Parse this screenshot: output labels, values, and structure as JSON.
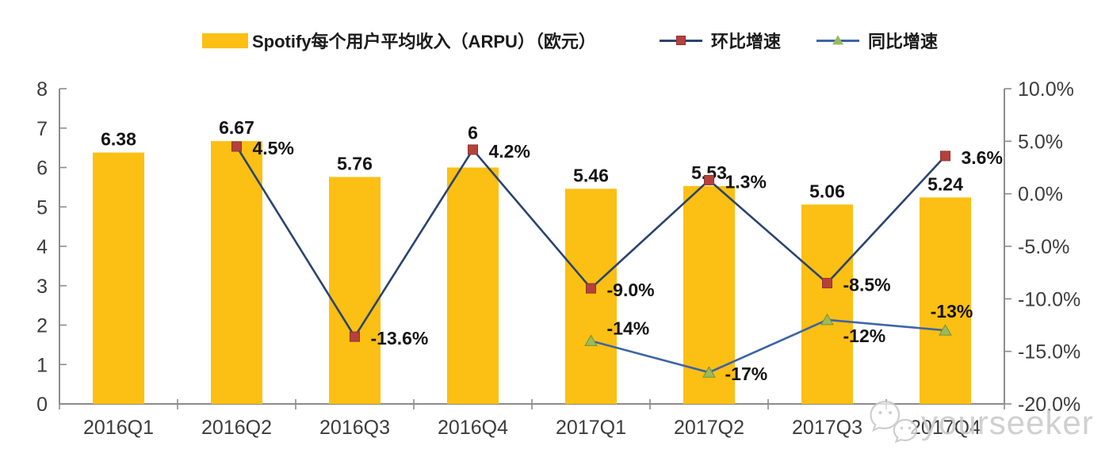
{
  "colors": {
    "bar": "#FCBF13",
    "qoq_line": "#2A4470",
    "qoq_marker": "#B5413D",
    "qoq_marker_edge": "#8E3330",
    "yoy_line": "#3C64A8",
    "yoy_marker": "#9CBA5B",
    "yoy_marker_edge": "#71923C",
    "axis": "#8C8C8C",
    "tick_text": "#3C3C3C",
    "data_label": "#141414",
    "watermark": "#cbcbcb"
  },
  "watermark": {
    "text": "yourseeker",
    "icon": "wechat-icon"
  },
  "chart_data": {
    "type": "bar+line",
    "title": "Spotify每个用户平均收入（ARPU）（欧元）",
    "grid": false,
    "legend_position": "top",
    "categories": [
      "2016Q1",
      "2016Q2",
      "2016Q3",
      "2016Q4",
      "2017Q1",
      "2017Q2",
      "2017Q3",
      "2017Q4"
    ],
    "bar_series": {
      "name": "Spotify每个用户平均收入（ARPU）（欧元）",
      "axis": "left",
      "values": [
        6.38,
        6.67,
        5.76,
        6,
        5.46,
        5.53,
        5.06,
        5.24
      ],
      "labels": [
        "6.38",
        "6.67",
        "5.76",
        "6",
        "5.46",
        "5.53",
        "5.06",
        "5.24"
      ],
      "label_dy": [
        0,
        0,
        0,
        -27,
        0,
        0,
        0,
        0
      ]
    },
    "line_series": [
      {
        "name": "环比增速",
        "axis": "right",
        "marker": "square",
        "points": [
          {
            "category": "2016Q2",
            "value": 4.5,
            "label": "4.5%",
            "label_pos": "right"
          },
          {
            "category": "2016Q3",
            "value": -13.6,
            "label": "-13.6%",
            "label_pos": "right"
          },
          {
            "category": "2016Q4",
            "value": 4.2,
            "label": "4.2%",
            "label_pos": "right"
          },
          {
            "category": "2017Q1",
            "value": -9.0,
            "label": "-9.0%",
            "label_pos": "right"
          },
          {
            "category": "2017Q2",
            "value": 1.3,
            "label": "1.3%",
            "label_pos": "right"
          },
          {
            "category": "2017Q3",
            "value": -8.5,
            "label": "-8.5%",
            "label_pos": "right"
          },
          {
            "category": "2017Q4",
            "value": 3.6,
            "label": "3.6%",
            "label_pos": "right"
          }
        ]
      },
      {
        "name": "同比增速",
        "axis": "right",
        "marker": "triangle",
        "points": [
          {
            "category": "2017Q1",
            "value": -14,
            "label": "-14%",
            "label_pos": "above-right"
          },
          {
            "category": "2017Q2",
            "value": -17,
            "label": "-17%",
            "label_pos": "right"
          },
          {
            "category": "2017Q3",
            "value": -12,
            "label": "-12%",
            "label_pos": "below-right"
          },
          {
            "category": "2017Q4",
            "value": -13,
            "label": "-13%",
            "label_pos": "above"
          }
        ]
      }
    ],
    "left_axis": {
      "min": 0,
      "max": 8,
      "tick_labels": [
        "0",
        "1",
        "2",
        "3",
        "4",
        "5",
        "6",
        "7",
        "8"
      ]
    },
    "right_axis": {
      "min": -20,
      "max": 10,
      "step": 5,
      "tick_labels": [
        "10.0%",
        "5.0%",
        "0.0%",
        "-5.0%",
        "-10.0%",
        "-15.0%",
        "-20.0%"
      ]
    }
  }
}
